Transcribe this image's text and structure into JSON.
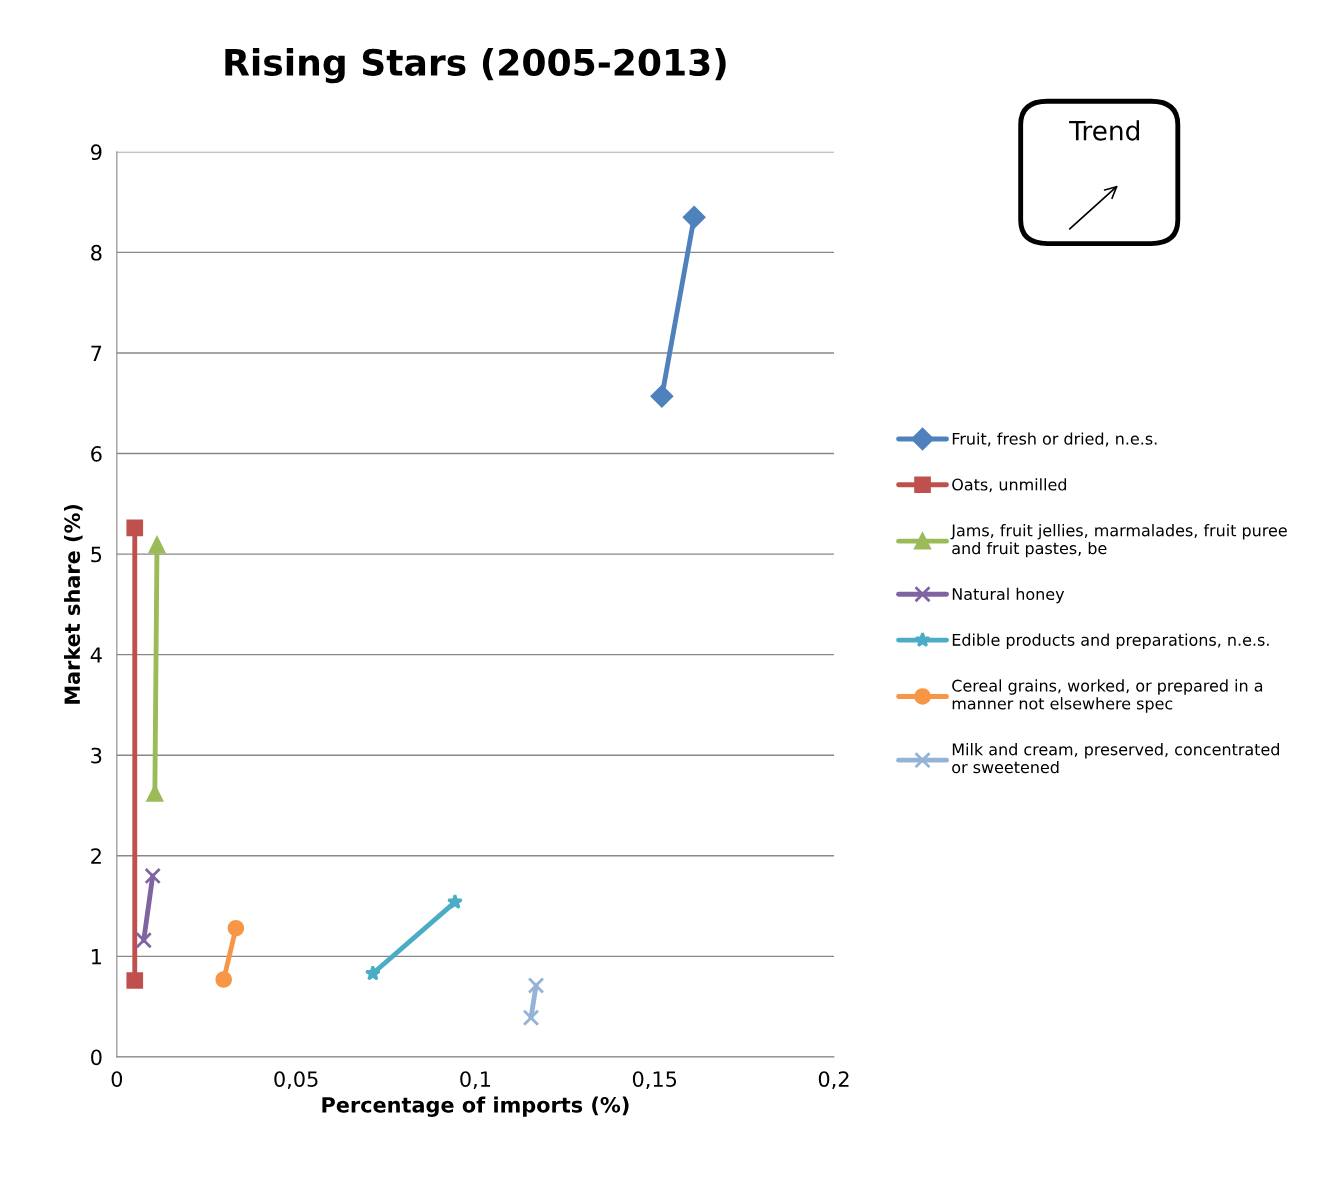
{
  "chart_data": {
    "type": "line",
    "title": "Rising Stars (2005-2013)",
    "xlabel": "Percentage of imports (%)",
    "ylabel": "Market share (%)",
    "xlim": [
      0,
      0.2
    ],
    "xticks": [
      0,
      {
        "value": 0.05,
        "label": "0,05"
      },
      {
        "value": 0.1,
        "label": "0,1"
      },
      {
        "value": 0.15,
        "label": "0,15"
      },
      {
        "value": 0.2,
        "label": "0,2"
      }
    ],
    "ylim": [
      0,
      9
    ],
    "yticks": [
      0,
      1,
      2,
      3,
      4,
      5,
      6,
      7,
      8,
      9
    ],
    "grid": "y",
    "legend": "right",
    "annotations": [
      "Trend"
    ],
    "series": [
      {
        "name": "Fruit, fresh or dried, n.e.s.",
        "color": "#4f81bd",
        "marker": "diamond",
        "x": [
          0.152,
          0.161
        ],
        "values": [
          6.57,
          8.35
        ]
      },
      {
        "name": "Oats, unmilled",
        "color": "#c0504d",
        "marker": "square",
        "x": [
          0.005,
          0.005
        ],
        "values": [
          0.76,
          5.26
        ]
      },
      {
        "name": "Jams, fruit jellies, marmalades, fruit puree\nand fruit pastes, be",
        "color": "#9bbb59",
        "marker": "triangle",
        "x": [
          0.0106,
          0.0112
        ],
        "values": [
          2.62,
          5.09
        ]
      },
      {
        "name": "Natural honey",
        "color": "#8064a2",
        "marker": "cross",
        "x": [
          0.0075,
          0.01
        ],
        "values": [
          1.16,
          1.8
        ]
      },
      {
        "name": "Edible products and preparations, n.e.s.",
        "color": "#4bacc6",
        "marker": "star",
        "x": [
          0.0714,
          0.0943
        ],
        "values": [
          0.83,
          1.54
        ]
      },
      {
        "name": "Cereal grains, worked, or prepared in a\nmanner not elsewhere spec",
        "color": "#f79646",
        "marker": "circle",
        "x": [
          0.0298,
          0.0332
        ],
        "values": [
          0.77,
          1.28
        ]
      },
      {
        "name": "Milk and cream, preserved, concentrated\nor sweetened",
        "color": "#95b3d7",
        "marker": "cross",
        "x": [
          0.1155,
          0.1169
        ],
        "values": [
          0.39,
          0.71
        ]
      }
    ]
  }
}
